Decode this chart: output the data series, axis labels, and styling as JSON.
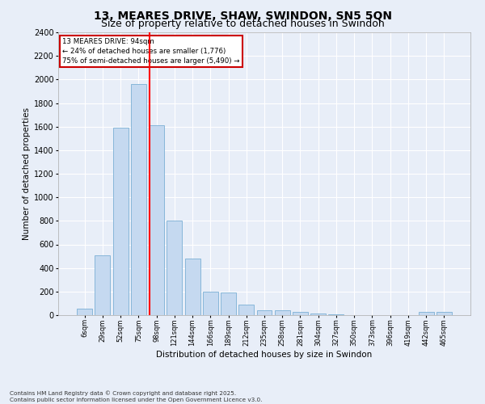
{
  "title": "13, MEARES DRIVE, SHAW, SWINDON, SN5 5QN",
  "subtitle": "Size of property relative to detached houses in Swindon",
  "xlabel": "Distribution of detached houses by size in Swindon",
  "ylabel": "Number of detached properties",
  "categories": [
    "6sqm",
    "29sqm",
    "52sqm",
    "75sqm",
    "98sqm",
    "121sqm",
    "144sqm",
    "166sqm",
    "189sqm",
    "212sqm",
    "235sqm",
    "258sqm",
    "281sqm",
    "304sqm",
    "327sqm",
    "350sqm",
    "373sqm",
    "396sqm",
    "419sqm",
    "442sqm",
    "465sqm"
  ],
  "values": [
    55,
    510,
    1590,
    1960,
    1610,
    800,
    480,
    200,
    190,
    90,
    40,
    40,
    30,
    15,
    10,
    0,
    0,
    0,
    0,
    25,
    25
  ],
  "bar_color": "#c5d9f0",
  "bar_edge_color": "#7bafd4",
  "annotation_title": "13 MEARES DRIVE: 94sqm",
  "annotation_line1": "← 24% of detached houses are smaller (1,776)",
  "annotation_line2": "75% of semi-detached houses are larger (5,490) →",
  "annotation_box_color": "#cc0000",
  "red_line_index": 3.6,
  "ylim": [
    0,
    2400
  ],
  "yticks": [
    0,
    200,
    400,
    600,
    800,
    1000,
    1200,
    1400,
    1600,
    1800,
    2000,
    2200,
    2400
  ],
  "footer1": "Contains HM Land Registry data © Crown copyright and database right 2025.",
  "footer2": "Contains public sector information licensed under the Open Government Licence v3.0.",
  "bg_color": "#e8eef8",
  "plot_bg_color": "#e8eef8",
  "title_fontsize": 10,
  "subtitle_fontsize": 9
}
